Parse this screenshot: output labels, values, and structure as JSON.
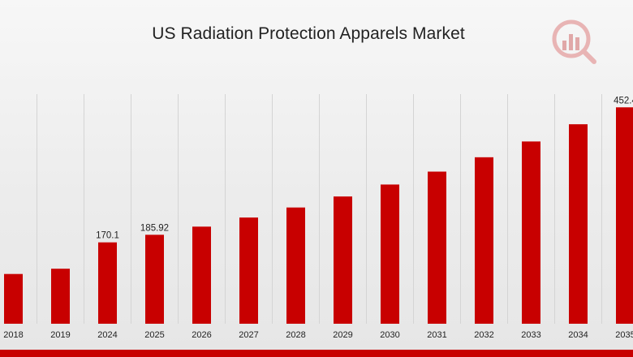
{
  "chart_data": {
    "type": "bar",
    "title": "US Radiation Protection Apparels Market",
    "xlabel": "",
    "ylabel": "",
    "categories": [
      "2018",
      "2019",
      "2024",
      "2025",
      "2026",
      "2027",
      "2028",
      "2029",
      "2030",
      "2031",
      "2032",
      "2033",
      "2034",
      "2035"
    ],
    "values": [
      104,
      115,
      170.1,
      185.92,
      203,
      222,
      243,
      266,
      291,
      318,
      348,
      381,
      417,
      452.4
    ],
    "data_labels": [
      null,
      null,
      "170.1",
      "185.92",
      null,
      null,
      null,
      null,
      null,
      null,
      null,
      null,
      null,
      "452.4"
    ],
    "ylim": [
      0,
      480
    ],
    "grid": "vertical",
    "legend": "none",
    "bar_color": "#c80000",
    "grid_color": "#d4d4d4",
    "accent_color": "#c80000"
  },
  "logo": {
    "icon": "bar-chart-logo-icon"
  }
}
